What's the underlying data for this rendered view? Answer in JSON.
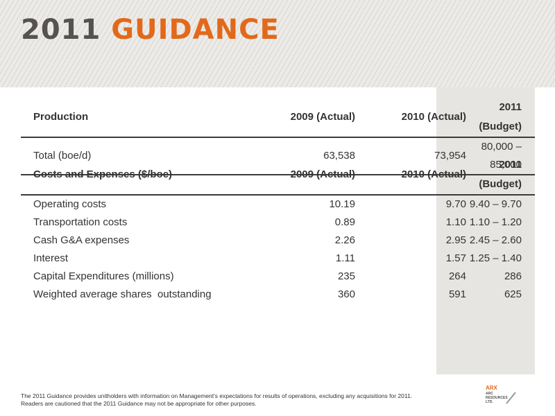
{
  "title": {
    "year": "2011",
    "word": "GUIDANCE"
  },
  "production": {
    "headers": [
      "Production",
      "2009 (Actual)",
      "2010 (Actual)",
      "2011 (Budget)"
    ],
    "rows": [
      [
        "Total (boe/d)",
        "63,538",
        "73,954",
        "80,000 – 85,000"
      ]
    ]
  },
  "costs": {
    "headers": [
      "Costs and Expenses ($/boe)",
      "2009 (Actual)",
      "2010 (Actual)",
      "2011 (Budget)"
    ],
    "rows": [
      [
        "Operating costs",
        "10.19",
        "9.70",
        "9.40 – 9.70"
      ],
      [
        "Transportation costs",
        "0.89",
        "1.10",
        "1.10 – 1.20"
      ],
      [
        "Cash G&A expenses",
        "2.26",
        "2.95",
        "2.45 – 2.60"
      ],
      [
        "Interest",
        "1.11",
        "1.57",
        "1.25 – 1.40"
      ],
      [
        "Capital Expenditures (millions)",
        "235",
        "264",
        "286"
      ],
      [
        "Weighted average shares  outstanding",
        "360",
        "591",
        "625"
      ]
    ]
  },
  "footnote": "The 2011 Guidance provides unitholders with information on Management's expectations for results of operations, excluding any acquisitions for 2011. Readers are cautioned that the 2011 Guidance may not be appropriate for other purposes.",
  "logo": {
    "line1": "ARX",
    "line2": "ARC",
    "line3": "RESOURCES",
    "line4": "LTD."
  },
  "colors": {
    "accent": "#e2691a",
    "title_gray": "#55524f",
    "budget_shade": "#e6e5e1",
    "header_band": "#ecebe8"
  }
}
